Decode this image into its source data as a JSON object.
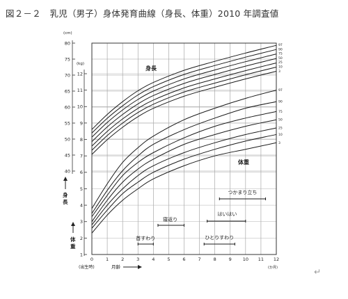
{
  "figure": {
    "title": "図２－２　乳児（男子）身体発育曲線（身長、体重）2010 年調査値",
    "return_mark": "↵"
  },
  "chart_data": {
    "type": "line",
    "x_axis": {
      "range": [
        0,
        12
      ],
      "ticks": [
        "0",
        "1",
        "2",
        "3",
        "4",
        "5",
        "6",
        "7",
        "8",
        "9",
        "10",
        "11",
        "12"
      ],
      "label_birth": "(出生時)",
      "label_age": "月齢",
      "unit": "(か月)"
    },
    "height_axis": {
      "unit": "(cm)",
      "range": [
        40,
        80
      ],
      "ticks": [
        "40",
        "45",
        "50",
        "55",
        "60",
        "65",
        "70",
        "75",
        "80"
      ],
      "label": [
        "身",
        "長"
      ]
    },
    "weight_axis": {
      "unit": "(kg)",
      "range": [
        1,
        12
      ],
      "ticks": [
        "1",
        "2",
        "3",
        "4",
        "5",
        "6",
        "7",
        "8",
        "9",
        "10",
        "11",
        "12"
      ],
      "label": [
        "体",
        "重"
      ]
    },
    "height_label": "身長",
    "weight_label": "体重",
    "height_series": [
      {
        "name": "97",
        "values": [
          [
            0,
            53.0
          ],
          [
            1,
            57.7
          ],
          [
            2,
            61.7
          ],
          [
            3,
            65.1
          ],
          [
            4,
            67.7
          ],
          [
            6,
            71.5
          ],
          [
            8,
            74.3
          ],
          [
            10,
            76.9
          ],
          [
            12,
            79.3
          ]
        ]
      },
      {
        "name": "90",
        "values": [
          [
            0,
            51.9
          ],
          [
            1,
            56.5
          ],
          [
            2,
            60.4
          ],
          [
            3,
            63.8
          ],
          [
            4,
            66.4
          ],
          [
            6,
            70.2
          ],
          [
            8,
            73.0
          ],
          [
            10,
            75.6
          ],
          [
            12,
            78.0
          ]
        ]
      },
      {
        "name": "75",
        "values": [
          [
            0,
            50.6
          ],
          [
            1,
            55.2
          ],
          [
            2,
            59.1
          ],
          [
            3,
            62.4
          ],
          [
            4,
            65.0
          ],
          [
            6,
            68.8
          ],
          [
            8,
            71.6
          ],
          [
            10,
            74.2
          ],
          [
            12,
            76.6
          ]
        ]
      },
      {
        "name": "50",
        "values": [
          [
            0,
            49.2
          ],
          [
            1,
            53.8
          ],
          [
            2,
            57.7
          ],
          [
            3,
            61.0
          ],
          [
            4,
            63.6
          ],
          [
            6,
            67.4
          ],
          [
            8,
            70.2
          ],
          [
            10,
            72.8
          ],
          [
            12,
            75.2
          ]
        ]
      },
      {
        "name": "25",
        "values": [
          [
            0,
            47.8
          ],
          [
            1,
            52.4
          ],
          [
            2,
            56.3
          ],
          [
            3,
            59.6
          ],
          [
            4,
            62.2
          ],
          [
            6,
            66.0
          ],
          [
            8,
            68.8
          ],
          [
            10,
            71.4
          ],
          [
            12,
            73.8
          ]
        ]
      },
      {
        "name": "10",
        "values": [
          [
            0,
            46.5
          ],
          [
            1,
            51.1
          ],
          [
            2,
            55.0
          ],
          [
            3,
            58.3
          ],
          [
            4,
            60.9
          ],
          [
            6,
            64.7
          ],
          [
            8,
            67.5
          ],
          [
            10,
            70.1
          ],
          [
            12,
            72.5
          ]
        ]
      },
      {
        "name": "3",
        "values": [
          [
            0,
            45.2
          ],
          [
            1,
            49.8
          ],
          [
            2,
            53.7
          ],
          [
            3,
            57.0
          ],
          [
            4,
            59.6
          ],
          [
            6,
            63.4
          ],
          [
            8,
            66.2
          ],
          [
            10,
            68.8
          ],
          [
            12,
            71.2
          ]
        ]
      }
    ],
    "weight_series": [
      {
        "name": "97",
        "values": [
          [
            0,
            3.8
          ],
          [
            1,
            5.3
          ],
          [
            2,
            6.6
          ],
          [
            3,
            7.5
          ],
          [
            4,
            8.2
          ],
          [
            6,
            9.2
          ],
          [
            8,
            9.9
          ],
          [
            10,
            10.5
          ],
          [
            12,
            11.0
          ]
        ]
      },
      {
        "name": "90",
        "values": [
          [
            0,
            3.5
          ],
          [
            1,
            4.9
          ],
          [
            2,
            6.1
          ],
          [
            3,
            7.0
          ],
          [
            4,
            7.7
          ],
          [
            6,
            8.6
          ],
          [
            8,
            9.3
          ],
          [
            10,
            9.9
          ],
          [
            12,
            10.3
          ]
        ]
      },
      {
        "name": "75",
        "values": [
          [
            0,
            3.3
          ],
          [
            1,
            4.6
          ],
          [
            2,
            5.8
          ],
          [
            3,
            6.6
          ],
          [
            4,
            7.2
          ],
          [
            6,
            8.1
          ],
          [
            8,
            8.8
          ],
          [
            10,
            9.3
          ],
          [
            12,
            9.7
          ]
        ]
      },
      {
        "name": "50",
        "values": [
          [
            0,
            3.0
          ],
          [
            1,
            4.3
          ],
          [
            2,
            5.4
          ],
          [
            3,
            6.2
          ],
          [
            4,
            6.8
          ],
          [
            6,
            7.7
          ],
          [
            8,
            8.3
          ],
          [
            10,
            8.8
          ],
          [
            12,
            9.2
          ]
        ]
      },
      {
        "name": "25",
        "values": [
          [
            0,
            2.8
          ],
          [
            1,
            4.0
          ],
          [
            2,
            5.0
          ],
          [
            3,
            5.8
          ],
          [
            4,
            6.4
          ],
          [
            6,
            7.2
          ],
          [
            8,
            7.8
          ],
          [
            10,
            8.3
          ],
          [
            12,
            8.7
          ]
        ]
      },
      {
        "name": "10",
        "values": [
          [
            0,
            2.6
          ],
          [
            1,
            3.7
          ],
          [
            2,
            4.7
          ],
          [
            3,
            5.4
          ],
          [
            4,
            6.0
          ],
          [
            6,
            6.8
          ],
          [
            8,
            7.4
          ],
          [
            10,
            7.9
          ],
          [
            12,
            8.3
          ]
        ]
      },
      {
        "name": "3",
        "values": [
          [
            0,
            2.3
          ],
          [
            1,
            3.4
          ],
          [
            2,
            4.3
          ],
          [
            3,
            5.0
          ],
          [
            4,
            5.6
          ],
          [
            6,
            6.4
          ],
          [
            8,
            7.0
          ],
          [
            10,
            7.4
          ],
          [
            12,
            7.8
          ]
        ]
      }
    ],
    "milestones": [
      {
        "label": "首すわり",
        "start": 3,
        "end": 4
      },
      {
        "label": "寝返り",
        "start": 4.3,
        "end": 6
      },
      {
        "label": "ひとりすわり",
        "start": 7.3,
        "end": 9.3
      },
      {
        "label": "はいはい",
        "start": 7.5,
        "end": 10
      },
      {
        "label": "つかまり立ち",
        "start": 8.3,
        "end": 11.3
      }
    ],
    "grid": true
  }
}
